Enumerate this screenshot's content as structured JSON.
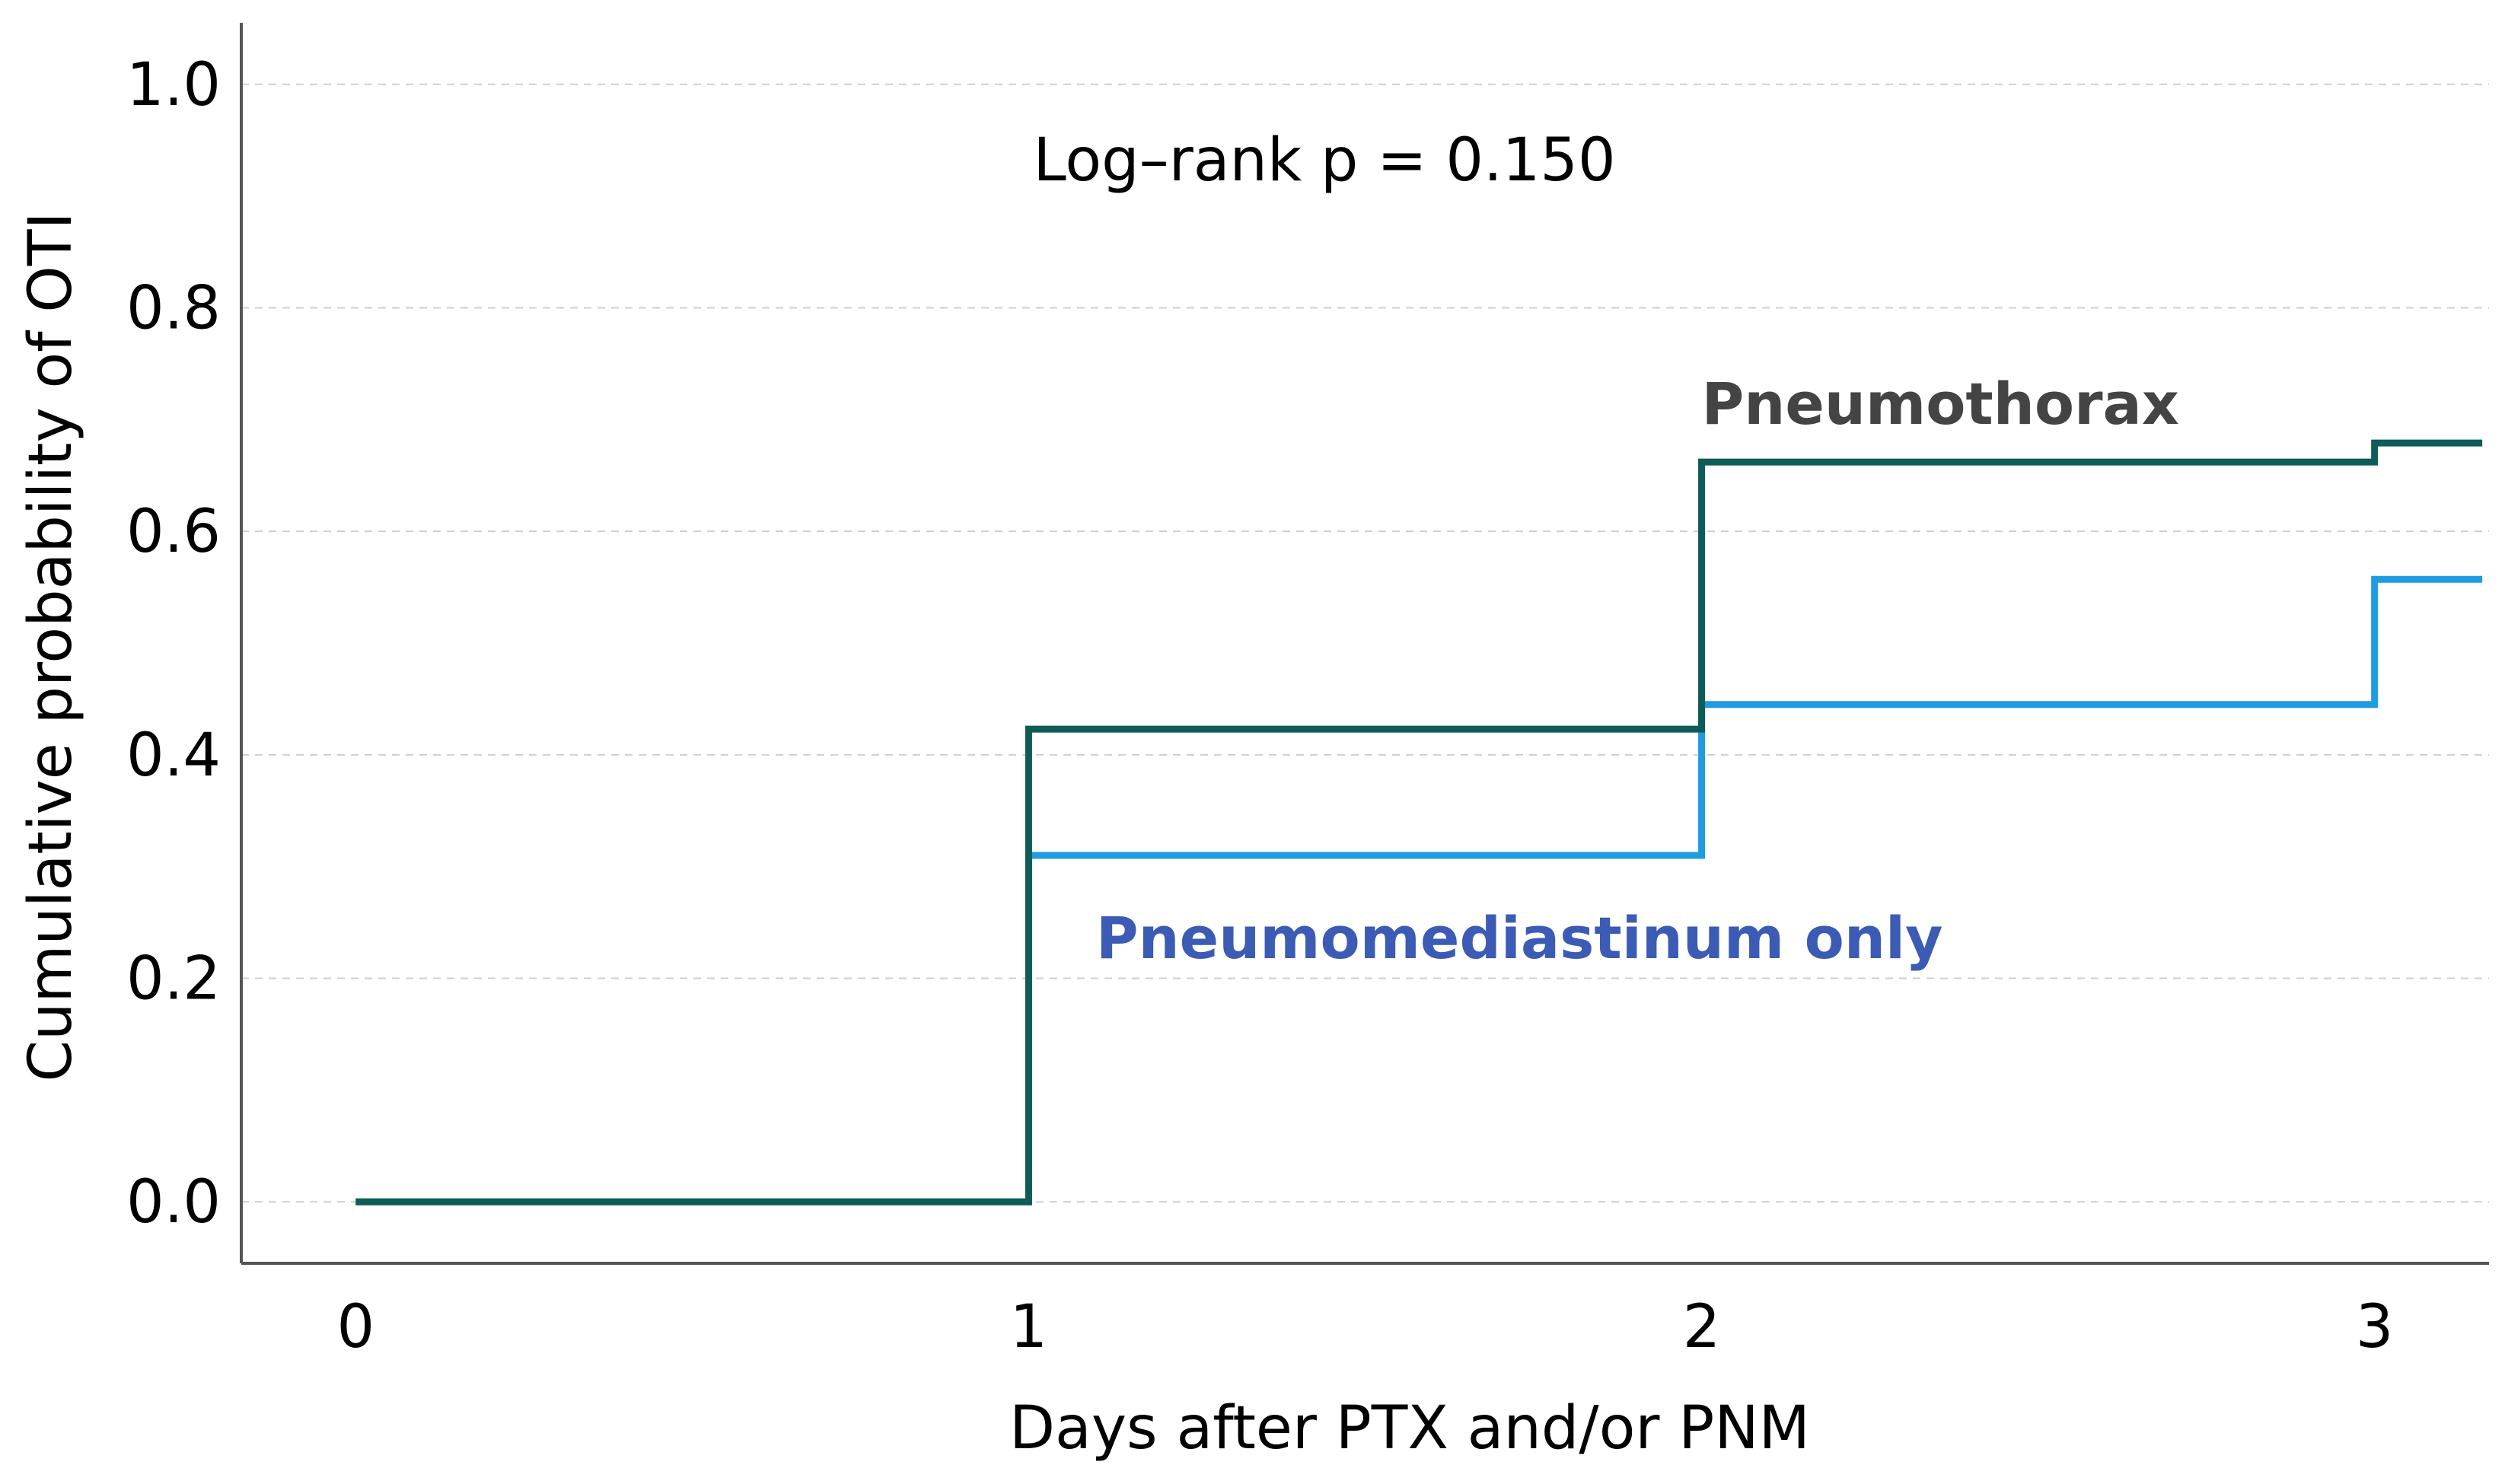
{
  "chart_data": {
    "type": "line",
    "subtype": "step",
    "title": "",
    "xlabel": "Days after PTX and/or PNM",
    "ylabel": "Cumulative probability of OTI",
    "xlim": [
      -0.17,
      3.17
    ],
    "ylim": [
      -0.055,
      1.055
    ],
    "xticks": [
      0,
      1,
      2,
      3
    ],
    "xtick_labels": [
      "0",
      "1",
      "2",
      "3"
    ],
    "yticks": [
      0.0,
      0.2,
      0.4,
      0.6,
      0.8,
      1.0
    ],
    "ytick_labels": [
      "0.0",
      "0.2",
      "0.4",
      "0.6",
      "0.8",
      "1.0"
    ],
    "grid": "horizontal dashed",
    "annotation": "Log–rank p = 0.150",
    "series": [
      {
        "name": "Pneumomediastinum only",
        "color": "#1f9be0",
        "label_color": "#3b5bb5",
        "x": [
          0,
          1,
          2,
          3,
          3.16
        ],
        "y": [
          0.0,
          0.31,
          0.445,
          0.557,
          0.557
        ]
      },
      {
        "name": "Pneumothorax",
        "color": "#0d5c57",
        "label_color": "#444444",
        "x": [
          0,
          1,
          2,
          3,
          3.16
        ],
        "y": [
          0.0,
          0.423,
          0.662,
          0.679,
          0.679
        ]
      }
    ]
  }
}
